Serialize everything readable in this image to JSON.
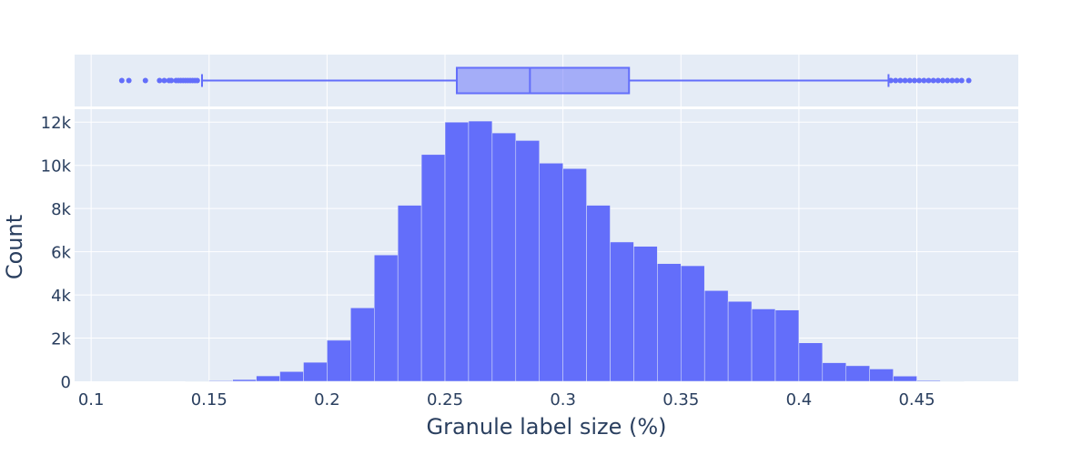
{
  "chart_data": [
    {
      "type": "box",
      "orientation": "horizontal",
      "color": "#636efa",
      "min_whisker": 0.147,
      "q1": 0.255,
      "median": 0.286,
      "q3": 0.328,
      "max_whisker": 0.438,
      "outliers_low": [
        0.113,
        0.116,
        0.123,
        0.129,
        0.131,
        0.133,
        0.134,
        0.136,
        0.137,
        0.138,
        0.139,
        0.14,
        0.141,
        0.142,
        0.143,
        0.144,
        0.145
      ],
      "outliers_high": [
        0.439,
        0.441,
        0.443,
        0.445,
        0.447,
        0.449,
        0.451,
        0.453,
        0.455,
        0.457,
        0.459,
        0.461,
        0.463,
        0.465,
        0.467,
        0.469,
        0.472
      ],
      "xlim": [
        0.093,
        0.493
      ]
    },
    {
      "type": "bar",
      "subtype": "histogram",
      "color": "#636efa",
      "bin_width": 0.01,
      "bin_starts": [
        0.14,
        0.15,
        0.16,
        0.17,
        0.18,
        0.19,
        0.2,
        0.21,
        0.22,
        0.23,
        0.24,
        0.25,
        0.26,
        0.27,
        0.28,
        0.29,
        0.3,
        0.31,
        0.32,
        0.33,
        0.34,
        0.35,
        0.36,
        0.37,
        0.38,
        0.39,
        0.4,
        0.41,
        0.42,
        0.43,
        0.44,
        0.45,
        0.46
      ],
      "values": [
        10,
        30,
        80,
        250,
        450,
        880,
        1900,
        3400,
        5850,
        8150,
        10500,
        12000,
        12050,
        11500,
        11150,
        10100,
        9850,
        8150,
        6450,
        6250,
        5450,
        5350,
        4200,
        3700,
        3350,
        3300,
        1780,
        860,
        720,
        570,
        240,
        40,
        10
      ],
      "xlim": [
        0.093,
        0.493
      ],
      "ylim": [
        0,
        12600
      ],
      "xticks": [
        0.1,
        0.15,
        0.2,
        0.25,
        0.3,
        0.35,
        0.4,
        0.45
      ],
      "xtick_labels": [
        "0.1",
        "0.15",
        "0.2",
        "0.25",
        "0.3",
        "0.35",
        "0.4",
        "0.45"
      ],
      "yticks": [
        0,
        2000,
        4000,
        6000,
        8000,
        10000,
        12000
      ],
      "ytick_labels": [
        "0",
        "2k",
        "4k",
        "6k",
        "8k",
        "10k",
        "12k"
      ],
      "xlabel": "Granule label size (%)",
      "ylabel": "Count",
      "grid": true
    }
  ],
  "colors": {
    "plot_bg": "#e5ecf6",
    "grid": "#ffffff",
    "text": "#2a3f5f",
    "trace": "#636efa"
  }
}
